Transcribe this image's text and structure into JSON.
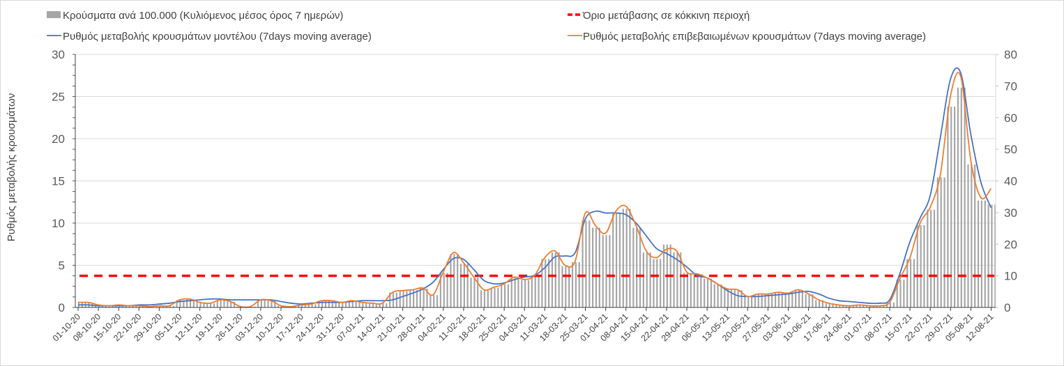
{
  "chart_data": {
    "type": "bar+line",
    "title": "",
    "ylabel": "Ρυθμός μεταβολής κρουσμάτων",
    "ylim_left": [
      0,
      30
    ],
    "ylim_right": [
      0,
      80
    ],
    "yticks_left": [
      0,
      5,
      10,
      15,
      20,
      25,
      30
    ],
    "yticks_right": [
      0,
      10,
      20,
      30,
      40,
      50,
      60,
      70,
      80
    ],
    "grid": true,
    "legend_position": "top",
    "x_tick_labels": [
      "01-10-20",
      "08-10-20",
      "15-10-20",
      "22-10-20",
      "29-10-20",
      "05-11-20",
      "12-11-20",
      "19-11-20",
      "26-11-20",
      "03-12-20",
      "10-12-20",
      "17-12-20",
      "24-12-20",
      "31-12-20",
      "07-01-21",
      "14-01-21",
      "21-01-21",
      "28-01-21",
      "04-02-21",
      "11-02-21",
      "18-02-21",
      "25-02-21",
      "04-03-21",
      "11-03-21",
      "18-03-21",
      "25-03-21",
      "01-04-21",
      "08-04-21",
      "15-04-21",
      "22-04-21",
      "29-04-21",
      "06-05-21",
      "13-05-21",
      "20-05-21",
      "27-05-21",
      "03-06-21",
      "10-06-21",
      "17-06-21",
      "24-06-21",
      "01-07-21",
      "08-07-21",
      "15-07-21",
      "22-07-21",
      "29-07-21",
      "05-08-21",
      "12-08-21"
    ],
    "x_step_weeks": 0.5,
    "series": [
      {
        "name": "Κρούσματα ανά 100.000 (Κυλιόμενος μέσος όρος 7 ημερών)",
        "type": "bar",
        "axis": "right",
        "color": "#a6a6a6",
        "values": [
          1.5,
          1.5,
          0.8,
          0.5,
          0.8,
          0.5,
          0.5,
          0.3,
          0.5,
          0.5,
          2.3,
          2.6,
          1.6,
          1.3,
          2.3,
          1.8,
          0.3,
          0.3,
          2.3,
          2.1,
          0.5,
          0.3,
          0.8,
          1.0,
          2.1,
          2.1,
          1.6,
          2.1,
          1.6,
          1.3,
          1.3,
          4.7,
          5.2,
          5.5,
          6.0,
          3.9,
          10.9,
          16.9,
          13.8,
          9.4,
          5.5,
          6.2,
          7.3,
          9.4,
          8.6,
          9.9,
          15.3,
          17.4,
          13.0,
          14.3,
          27.5,
          25.2,
          22.9,
          29.6,
          31.2,
          25.2,
          17.4,
          15.3,
          19.9,
          17.4,
          10.9,
          10.4,
          9.1,
          7.3,
          5.7,
          5.5,
          3.4,
          4.2,
          4.2,
          4.7,
          4.4,
          5.5,
          4.2,
          2.3,
          1.3,
          0.8,
          0.5,
          0.8,
          0.5,
          0.5,
          1.6,
          8.8,
          15.3,
          26.0,
          30.9,
          41.1,
          63.5,
          69.5,
          45.2,
          33.8,
          32.5
        ]
      },
      {
        "name": "Όριο μετάβασης σε κόκκινη περιοχή",
        "type": "hline",
        "axis": "left",
        "color": "#ff0000",
        "value": 3.75
      },
      {
        "name": "Ρυθμός μεταβολής κρουσμάτων μοντέλου (7days moving average)",
        "type": "line",
        "axis": "left",
        "color": "#4472c4",
        "values": [
          0.3,
          0.3,
          0.2,
          0.2,
          0.2,
          0.2,
          0.3,
          0.3,
          0.4,
          0.5,
          0.7,
          0.8,
          0.9,
          1.0,
          1.0,
          0.9,
          0.9,
          0.9,
          0.9,
          0.9,
          0.7,
          0.5,
          0.4,
          0.5,
          0.6,
          0.6,
          0.6,
          0.7,
          0.8,
          0.8,
          0.8,
          0.9,
          1.3,
          1.7,
          2.2,
          3.0,
          4.5,
          5.8,
          5.7,
          4.5,
          3.2,
          2.8,
          2.9,
          3.3,
          3.6,
          3.8,
          4.7,
          6.0,
          6.1,
          6.5,
          10.5,
          11.4,
          11.2,
          11.2,
          11.0,
          10.0,
          8.5,
          7.0,
          6.4,
          5.7,
          4.8,
          3.8,
          3.5,
          2.8,
          2.0,
          1.4,
          1.3,
          1.3,
          1.4,
          1.5,
          1.6,
          1.8,
          1.9,
          1.6,
          1.1,
          0.8,
          0.7,
          0.6,
          0.5,
          0.5,
          0.9,
          4.0,
          7.8,
          10.6,
          13.3,
          20.2,
          27.1,
          27.8,
          20.5,
          14.8,
          11.8
        ]
      },
      {
        "name": "Ρυθμός μεταβολής επιβεβαιωμένων κρουσμάτων (7days moving average)",
        "type": "line",
        "axis": "left",
        "color": "#ed7d31",
        "values": [
          0.6,
          0.6,
          0.3,
          0.2,
          0.3,
          0.2,
          0.2,
          0.1,
          0.2,
          0.2,
          0.9,
          1.0,
          0.6,
          0.5,
          0.9,
          0.7,
          0.1,
          0.1,
          0.9,
          0.8,
          0.2,
          0.1,
          0.3,
          0.4,
          0.8,
          0.8,
          0.6,
          0.8,
          0.6,
          0.5,
          0.5,
          1.8,
          2.0,
          2.1,
          2.3,
          1.5,
          4.2,
          6.5,
          5.3,
          3.6,
          2.1,
          2.4,
          2.8,
          3.6,
          3.3,
          3.8,
          5.9,
          6.7,
          5.0,
          5.5,
          11.2,
          9.7,
          8.8,
          11.4,
          12.0,
          9.7,
          6.7,
          5.9,
          6.9,
          6.7,
          4.2,
          4.0,
          3.5,
          2.8,
          2.2,
          2.1,
          1.3,
          1.6,
          1.6,
          1.8,
          1.7,
          2.1,
          1.6,
          0.9,
          0.5,
          0.3,
          0.2,
          0.3,
          0.2,
          0.2,
          0.6,
          3.4,
          5.9,
          10.0,
          11.9,
          15.8,
          25.1,
          27.4,
          17.4,
          13.0,
          14.1
        ]
      }
    ]
  }
}
